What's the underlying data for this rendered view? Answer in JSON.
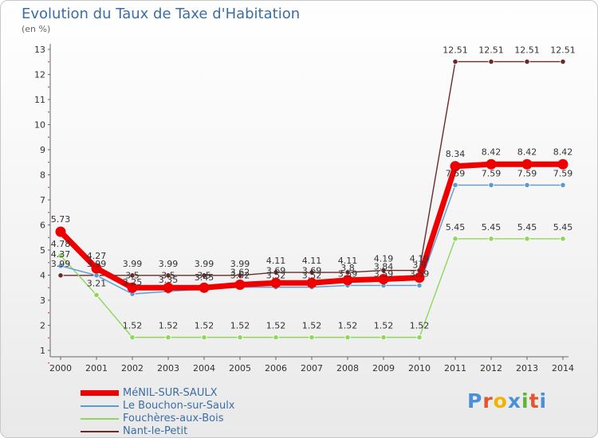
{
  "title": "Evolution du Taux de Taxe d'Habitation",
  "subtitle": "(en %)",
  "logo": {
    "text": "Proxiti",
    "colors": [
      "#4a90d9",
      "#e3552d",
      "#f0b400",
      "#4a90d9",
      "#5fb336",
      "#e3552d",
      "#4a90d9"
    ]
  },
  "chart_data": {
    "type": "line",
    "title": "Evolution du Taux de Taxe d'Habitation",
    "ylabel": "(en %)",
    "xlabel": "",
    "ylim": [
      1,
      13
    ],
    "grid": false,
    "legend": "bottom-left",
    "x": [
      "2000",
      "2001",
      "2002",
      "2003",
      "2004",
      "2005",
      "2006",
      "2007",
      "2008",
      "2009",
      "2010",
      "2011",
      "2012",
      "2013",
      "2014"
    ],
    "yticks": [
      "1",
      "2",
      "3",
      "4",
      "5",
      "6",
      "7",
      "8",
      "9",
      "10",
      "11",
      "12",
      "13"
    ],
    "series": [
      {
        "name": "Nant-le-Petit",
        "color": "#6b2a2a",
        "values": [
          3.99,
          3.99,
          3.99,
          3.99,
          3.99,
          3.99,
          4.11,
          4.11,
          4.11,
          4.19,
          4.19,
          12.51,
          12.51,
          12.51,
          12.51
        ],
        "labels": [
          "3.99",
          "",
          "3.99",
          "3.99",
          "3.99",
          "3.99",
          "4.11",
          "4.11",
          "4.11",
          "4.19",
          "4.19",
          "12.51",
          "12.51",
          "12.51",
          "12.51"
        ]
      },
      {
        "name": "Fouchères-aux-Bois",
        "color": "#8fd65a",
        "values": [
          4.78,
          3.21,
          1.52,
          1.52,
          1.52,
          1.52,
          1.52,
          1.52,
          1.52,
          1.52,
          1.52,
          5.45,
          5.45,
          5.45,
          5.45
        ],
        "labels": [
          "4.78",
          "3.21",
          "1.52",
          "1.52",
          "1.52",
          "1.52",
          "1.52",
          "1.52",
          "1.52",
          "1.52",
          "1.52",
          "5.45",
          "5.45",
          "5.45",
          "5.45"
        ]
      },
      {
        "name": "Le Bouchon-sur-Saulx",
        "color": "#5b9bd5",
        "values": [
          4.37,
          3.99,
          3.25,
          3.35,
          3.45,
          3.52,
          3.52,
          3.52,
          3.59,
          3.59,
          3.59,
          7.59,
          7.59,
          7.59,
          7.59
        ],
        "labels": [
          "4.37",
          "3.99",
          "3.25",
          "3.35",
          "3.45",
          "3.52",
          "3.52",
          "3.52",
          "3.59",
          "3.59",
          "3.59",
          "7.59",
          "7.59",
          "7.59",
          "7.59"
        ]
      },
      {
        "name": "MéNIL-SUR-SAULX",
        "color": "#ee0000",
        "thick": true,
        "values": [
          5.73,
          4.27,
          3.5,
          3.5,
          3.5,
          3.62,
          3.69,
          3.69,
          3.8,
          3.84,
          3.9,
          8.34,
          8.42,
          8.42,
          8.42
        ],
        "labels": [
          "5.73",
          "4.27",
          "3.5",
          "3.5",
          "3.5",
          "3.62",
          "3.69",
          "3.69",
          "3.8",
          "3.84",
          "3.9",
          "8.34",
          "8.42",
          "8.42",
          "8.42"
        ]
      }
    ],
    "legend_order": [
      "MéNIL-SUR-SAULX",
      "Le Bouchon-sur-Saulx",
      "Fouchères-aux-Bois",
      "Nant-le-Petit"
    ]
  }
}
